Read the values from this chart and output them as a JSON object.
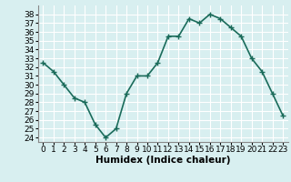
{
  "x": [
    0,
    1,
    2,
    3,
    4,
    5,
    6,
    7,
    8,
    9,
    10,
    11,
    12,
    13,
    14,
    15,
    16,
    17,
    18,
    19,
    20,
    21,
    22,
    23
  ],
  "y": [
    32.5,
    31.5,
    30.0,
    28.5,
    28.0,
    25.5,
    24.0,
    25.0,
    29.0,
    31.0,
    31.0,
    32.5,
    35.5,
    35.5,
    37.5,
    37.0,
    38.0,
    37.5,
    36.5,
    35.5,
    33.0,
    31.5,
    29.0,
    26.5
  ],
  "line_color": "#1a6b5a",
  "marker": "+",
  "bg_color": "#d8eff0",
  "grid_color": "#ffffff",
  "xlabel": "Humidex (Indice chaleur)",
  "xlabel_fontsize": 7.5,
  "yticks": [
    24,
    25,
    26,
    27,
    28,
    29,
    30,
    31,
    32,
    33,
    34,
    35,
    36,
    37,
    38
  ],
  "xticks": [
    0,
    1,
    2,
    3,
    4,
    5,
    6,
    7,
    8,
    9,
    10,
    11,
    12,
    13,
    14,
    15,
    16,
    17,
    18,
    19,
    20,
    21,
    22,
    23
  ],
  "ylim": [
    23.5,
    39.0
  ],
  "xlim": [
    -0.5,
    23.5
  ],
  "tick_fontsize": 6.5,
  "linewidth": 1.2,
  "markersize": 4
}
